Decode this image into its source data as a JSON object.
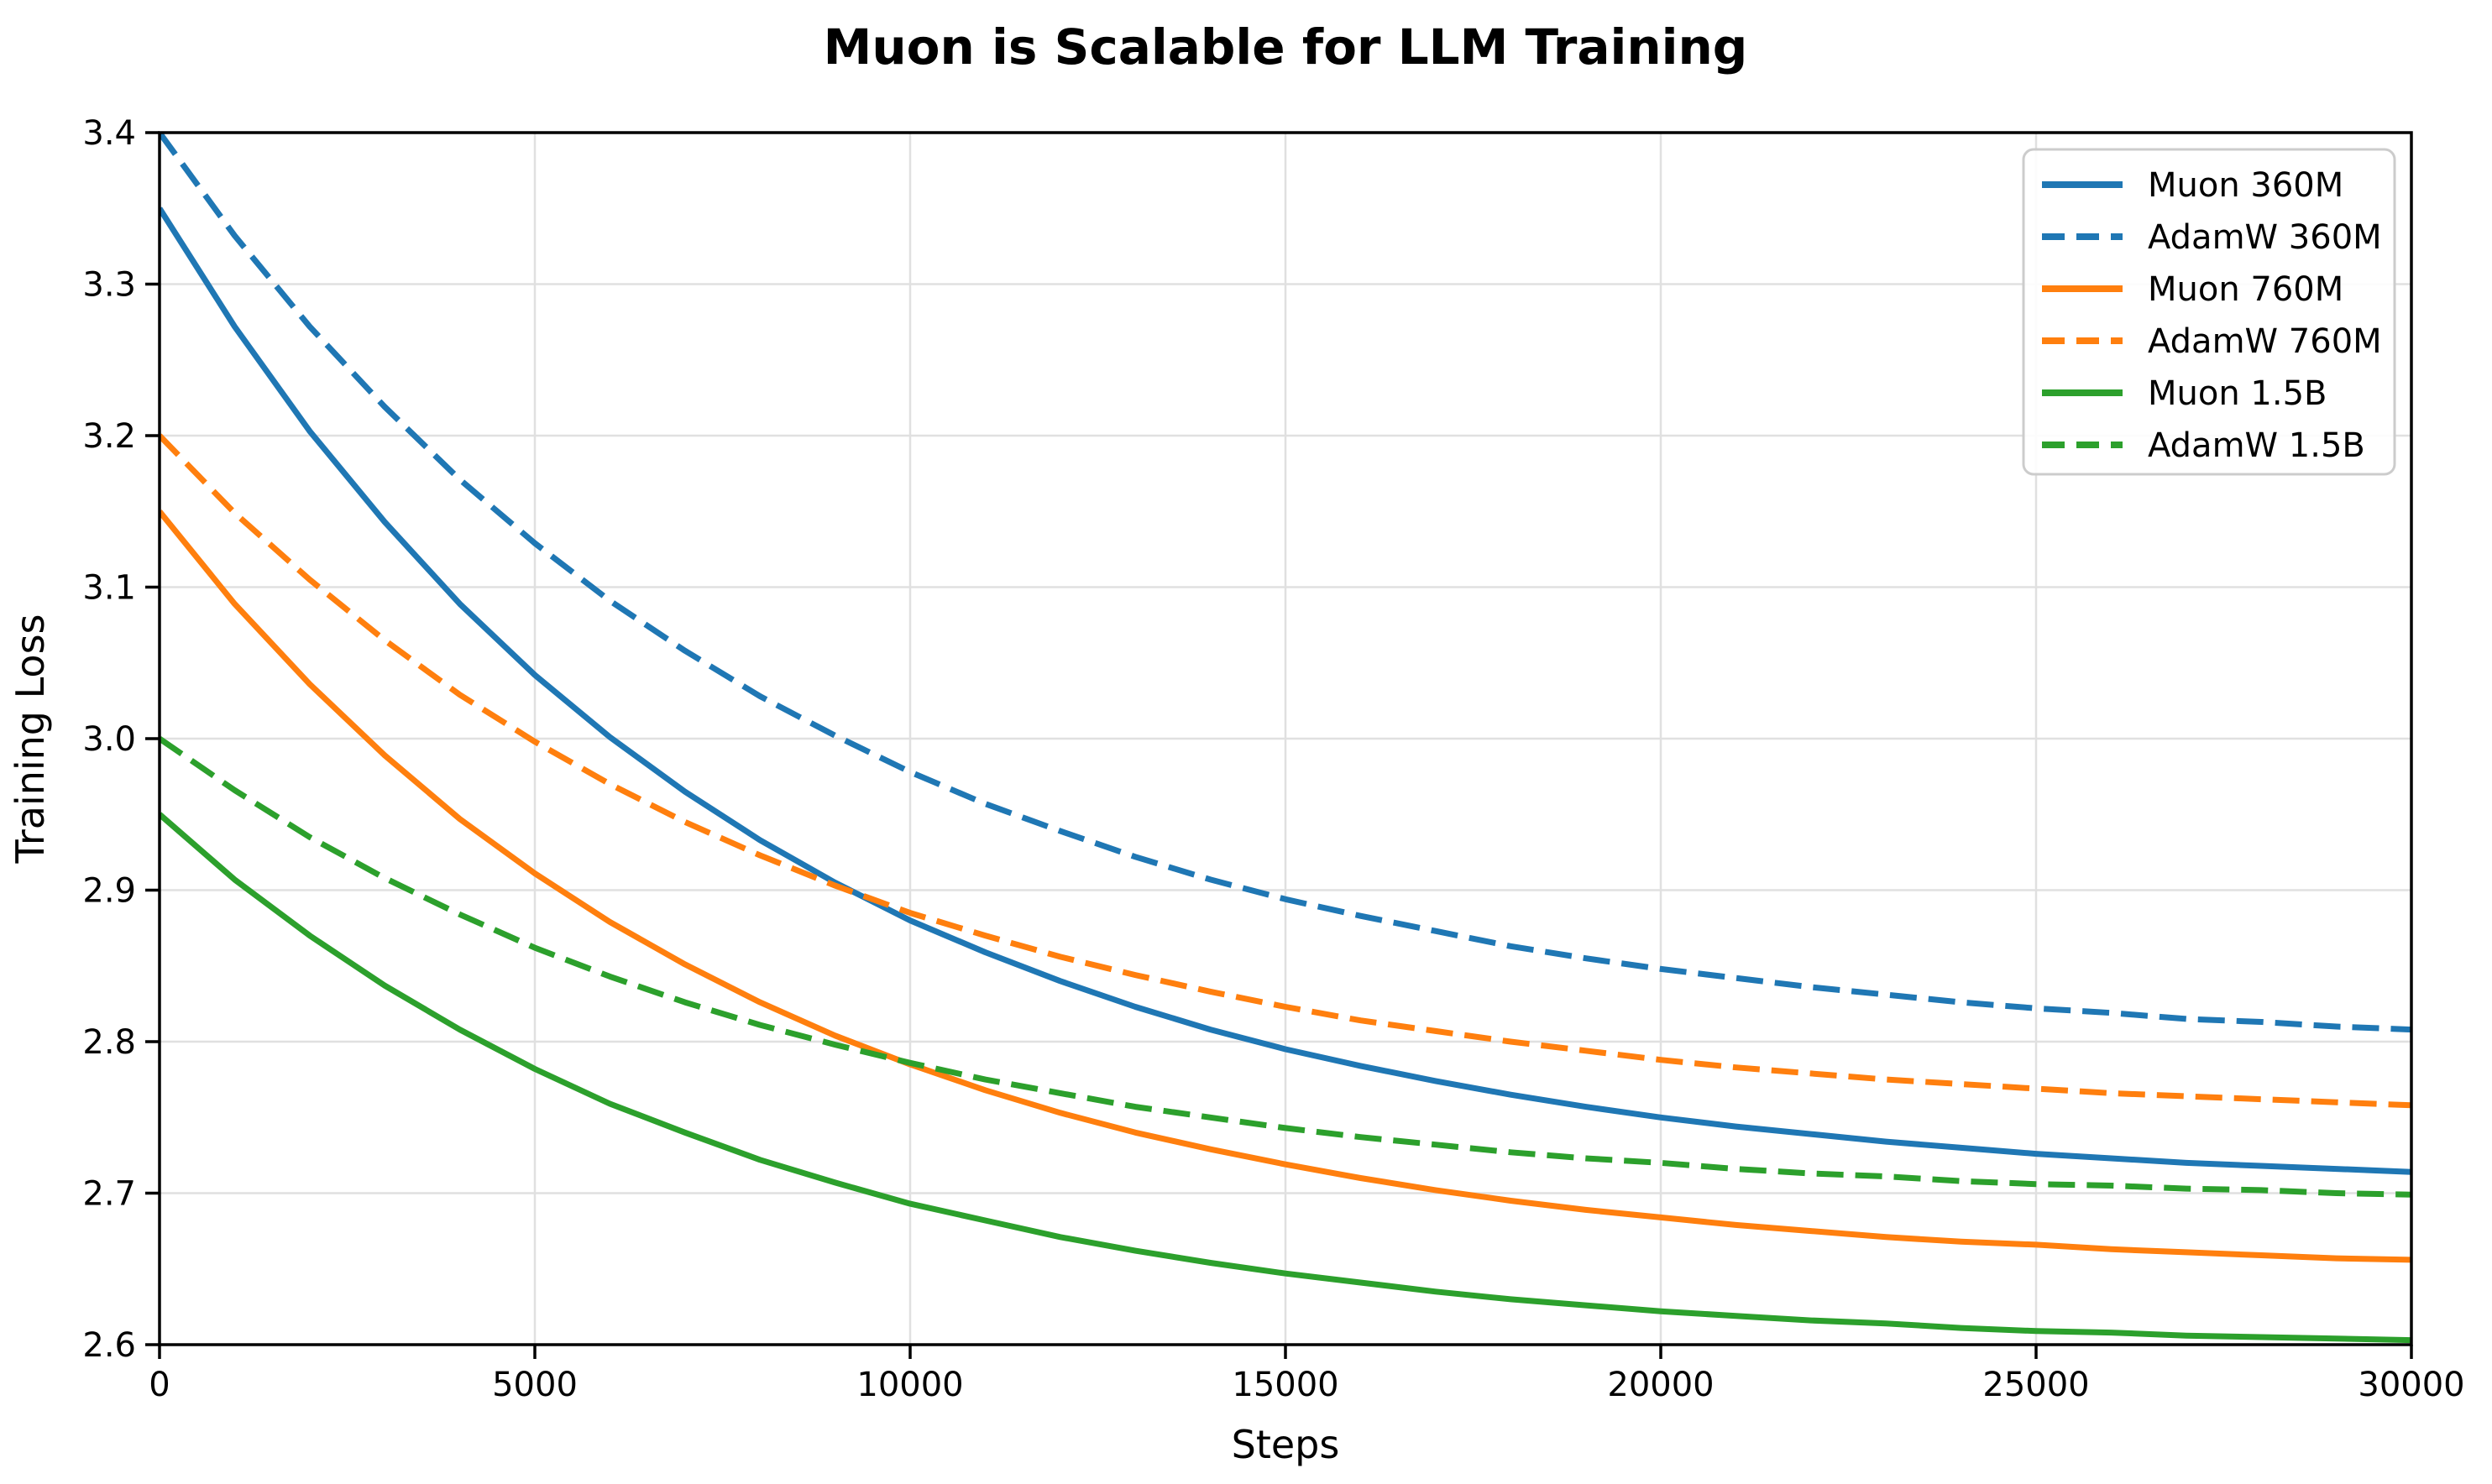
{
  "chart_data": {
    "type": "line",
    "title": "Muon is Scalable for LLM Training",
    "xlabel": "Steps",
    "ylabel": "Training Loss",
    "xlim": [
      0,
      30000
    ],
    "ylim": [
      2.6,
      3.4
    ],
    "grid": true,
    "legend_position": "upper right",
    "xticks": {
      "values": [
        0,
        5000,
        10000,
        15000,
        20000,
        25000,
        30000
      ],
      "labels": [
        "0",
        "5000",
        "10000",
        "15000",
        "20000",
        "25000",
        "30000"
      ]
    },
    "yticks": {
      "values": [
        2.6,
        2.7,
        2.8,
        2.9,
        3.0,
        3.1,
        3.2,
        3.3,
        3.4
      ],
      "labels": [
        "2.6",
        "2.7",
        "2.8",
        "2.9",
        "3.0",
        "3.1",
        "3.2",
        "3.3",
        "3.4"
      ]
    },
    "x": [
      0,
      1000,
      2000,
      3000,
      4000,
      5000,
      6000,
      7000,
      8000,
      9000,
      10000,
      11000,
      12000,
      13000,
      14000,
      15000,
      16000,
      17000,
      18000,
      19000,
      20000,
      21000,
      22000,
      23000,
      24000,
      25000,
      26000,
      27000,
      28000,
      29000,
      30000
    ],
    "series": [
      {
        "name": "Muon 360M",
        "color": "#1f77b4",
        "line_style": "solid",
        "values": [
          3.35,
          3.272,
          3.203,
          3.143,
          3.089,
          3.042,
          3.001,
          2.965,
          2.933,
          2.905,
          2.88,
          2.859,
          2.84,
          2.823,
          2.808,
          2.795,
          2.784,
          2.774,
          2.765,
          2.757,
          2.75,
          2.744,
          2.739,
          2.734,
          2.73,
          2.726,
          2.723,
          2.72,
          2.718,
          2.716,
          2.714
        ]
      },
      {
        "name": "AdamW 360M",
        "color": "#1f77b4",
        "line_style": "dashed",
        "values": [
          3.4,
          3.332,
          3.272,
          3.219,
          3.171,
          3.129,
          3.091,
          3.058,
          3.028,
          3.002,
          2.978,
          2.957,
          2.939,
          2.922,
          2.907,
          2.894,
          2.883,
          2.873,
          2.863,
          2.855,
          2.848,
          2.842,
          2.836,
          2.831,
          2.826,
          2.822,
          2.819,
          2.815,
          2.813,
          2.81,
          2.808
        ]
      },
      {
        "name": "Muon 760M",
        "color": "#ff7f0e",
        "line_style": "solid",
        "values": [
          3.15,
          3.089,
          3.036,
          2.989,
          2.947,
          2.911,
          2.879,
          2.851,
          2.826,
          2.804,
          2.785,
          2.768,
          2.753,
          2.74,
          2.729,
          2.719,
          2.71,
          2.702,
          2.695,
          2.689,
          2.684,
          2.679,
          2.675,
          2.671,
          2.668,
          2.666,
          2.663,
          2.661,
          2.659,
          2.657,
          2.656
        ]
      },
      {
        "name": "AdamW 760M",
        "color": "#ff7f0e",
        "line_style": "dashed",
        "values": [
          3.2,
          3.149,
          3.105,
          3.065,
          3.029,
          2.998,
          2.97,
          2.945,
          2.923,
          2.903,
          2.885,
          2.87,
          2.856,
          2.844,
          2.833,
          2.823,
          2.814,
          2.807,
          2.8,
          2.794,
          2.788,
          2.783,
          2.779,
          2.775,
          2.772,
          2.769,
          2.766,
          2.764,
          2.762,
          2.76,
          2.758
        ]
      },
      {
        "name": "Muon 1.5B",
        "color": "#2ca02c",
        "line_style": "solid",
        "values": [
          2.95,
          2.907,
          2.87,
          2.837,
          2.808,
          2.782,
          2.759,
          2.74,
          2.722,
          2.707,
          2.693,
          2.682,
          2.671,
          2.662,
          2.654,
          2.647,
          2.641,
          2.635,
          2.63,
          2.626,
          2.622,
          2.619,
          2.616,
          2.614,
          2.611,
          2.609,
          2.608,
          2.606,
          2.605,
          2.604,
          2.603
        ]
      },
      {
        "name": "AdamW 1.5B",
        "color": "#2ca02c",
        "line_style": "dashed",
        "values": [
          3.0,
          2.966,
          2.935,
          2.908,
          2.884,
          2.862,
          2.843,
          2.826,
          2.811,
          2.798,
          2.786,
          2.775,
          2.766,
          2.757,
          2.75,
          2.743,
          2.737,
          2.732,
          2.727,
          2.723,
          2.72,
          2.716,
          2.713,
          2.711,
          2.708,
          2.706,
          2.705,
          2.703,
          2.702,
          2.7,
          2.699
        ]
      }
    ],
    "colors": {
      "grid": "#e0e0e0",
      "spine": "#000000",
      "tick": "#000000",
      "text": "#000000",
      "legend_border": "#cccccc",
      "legend_background": "#ffffff"
    }
  }
}
